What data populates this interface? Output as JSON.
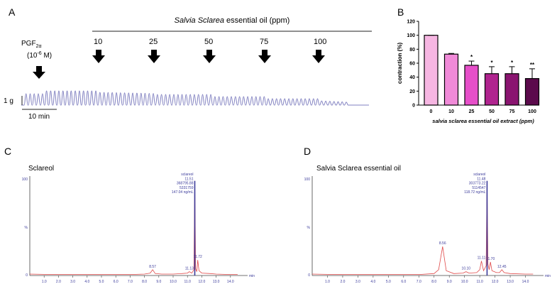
{
  "panels": {
    "a": "A",
    "b": "B",
    "c": "C",
    "d": "D"
  },
  "trace": {
    "title_italic": "Salvia Sclarea",
    "title_rest": " essential oil (ppm)",
    "agonist_base": "PGF",
    "agonist_sub": "2α",
    "agonist_conc_pre": "(10",
    "agonist_conc_exp": "-6",
    "agonist_conc_post": " M)",
    "doses": [
      "10",
      "25",
      "50",
      "75",
      "100"
    ],
    "scale_force": "1 g",
    "scale_time": "10 min",
    "trace_color": "#8080c0"
  },
  "chart_data": [
    {
      "type": "bar",
      "ylabel": "contraction (%)",
      "xlabel": "salvia sclarea essential oil extract (ppm)",
      "categories": [
        "0",
        "10",
        "25",
        "50",
        "75",
        "100"
      ],
      "values": [
        100,
        73,
        57,
        45,
        45,
        38
      ],
      "errors": [
        0,
        1,
        6,
        10,
        10,
        14
      ],
      "significance": [
        "",
        "",
        "*",
        "*",
        "*",
        "**"
      ],
      "colors": [
        "#f6b6e2",
        "#f08ad8",
        "#e64fc9",
        "#b0248f",
        "#8a1470",
        "#5b0a4c"
      ],
      "yticks": [
        "0",
        "20",
        "40",
        "60",
        "80",
        "100",
        "120"
      ],
      "ylim": [
        0,
        120
      ]
    },
    {
      "type": "line",
      "title": "Sclareol",
      "peak": {
        "name": "sclareol",
        "rt": "11.51",
        "area": "368795.88",
        "height": "5331759",
        "conc": "147.04 ng/mL"
      },
      "labels": [
        "8.57",
        "11.13",
        "11.72"
      ],
      "x": [
        0.0,
        1.0,
        2.0,
        3.0,
        4.0,
        5.0,
        6.0,
        7.0,
        8.0,
        8.4,
        8.57,
        8.75,
        9.2,
        10.0,
        10.6,
        11.0,
        11.13,
        11.3,
        11.45,
        11.51,
        11.57,
        11.65,
        11.72,
        11.8,
        12.0,
        12.6,
        13.0,
        14.0,
        14.5
      ],
      "y": [
        1.5,
        1.2,
        1.0,
        1.0,
        1.0,
        1.0,
        1.0,
        1.0,
        1.5,
        2.5,
        6.0,
        2.0,
        1.5,
        1.5,
        2.0,
        2.5,
        4.0,
        2.5,
        6.0,
        98.0,
        7.0,
        4.0,
        16.0,
        5.0,
        2.5,
        2.0,
        1.5,
        1.0,
        1.0
      ],
      "peak_line_color": "#3b3b9b",
      "trace_color": "#e04848",
      "xticks": [
        "1.0",
        "2.0",
        "3.0",
        "4.0",
        "5.0",
        "6.0",
        "7.0",
        "8.0",
        "9.0",
        "10.0",
        "11.0",
        "12.0",
        "13.0",
        "14.0"
      ],
      "xunit": "min",
      "ylabel_top": "100",
      "ylabel_mid": "%",
      "ylabel_bottom": "0",
      "xlim": [
        0,
        15
      ],
      "ylim": [
        0,
        100
      ]
    },
    {
      "type": "line",
      "title": "Salvia Sclarea essential oil",
      "peak": {
        "name": "sclareol",
        "rt": "11.48",
        "area": "303773.22",
        "height": "5114547",
        "conc": "118.72 ng/mL"
      },
      "labels": [
        "8.56",
        "10.10",
        "11.11",
        "11.70",
        "12.45"
      ],
      "x": [
        0.0,
        1.0,
        2.0,
        3.0,
        4.0,
        5.0,
        6.0,
        7.0,
        8.0,
        8.3,
        8.56,
        8.8,
        9.3,
        9.9,
        10.1,
        10.3,
        10.8,
        11.0,
        11.11,
        11.25,
        11.42,
        11.48,
        11.54,
        11.62,
        11.7,
        11.8,
        12.1,
        12.3,
        12.45,
        12.6,
        13.0,
        14.0,
        14.5
      ],
      "y": [
        1.5,
        1.2,
        1.0,
        1.0,
        1.0,
        1.0,
        1.0,
        1.0,
        2.0,
        6.0,
        30.0,
        5.0,
        2.0,
        2.5,
        4.0,
        2.5,
        3.0,
        6.0,
        15.0,
        5.0,
        10.0,
        98.0,
        12.0,
        6.0,
        14.0,
        5.0,
        3.0,
        3.0,
        6.0,
        3.0,
        2.0,
        1.5,
        1.5
      ],
      "peak_line_color": "#3b3b9b",
      "trace_color": "#e04848",
      "xticks": [
        "1.0",
        "2.0",
        "3.0",
        "4.0",
        "5.0",
        "6.0",
        "7.0",
        "8.0",
        "9.0",
        "10.0",
        "11.0",
        "12.0",
        "13.0",
        "14.0"
      ],
      "xunit": "min",
      "ylabel_top": "100",
      "ylabel_mid": "%",
      "ylabel_bottom": "0",
      "xlim": [
        0,
        15
      ],
      "ylim": [
        0,
        100
      ]
    }
  ]
}
